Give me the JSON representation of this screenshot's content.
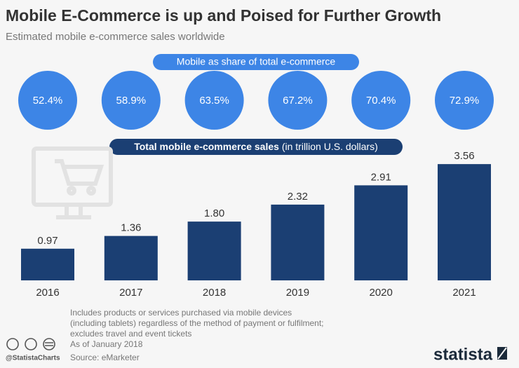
{
  "chart_data": {
    "type": "bar",
    "title": "Mobile E-Commerce is up and Poised for Further Growth",
    "subtitle": "Estimated mobile e-commerce sales worldwide",
    "share_title": "Mobile as share of total e-commerce",
    "share_values": [
      52.4,
      58.9,
      63.5,
      67.2,
      70.4,
      72.9
    ],
    "share_labels": [
      "52.4%",
      "58.9%",
      "63.5%",
      "67.2%",
      "70.4%",
      "72.9%"
    ],
    "share_color": "#3d85e6",
    "bar_title": "Total mobile e-commerce sales",
    "bar_unit": "(in trillion U.S. dollars)",
    "categories": [
      "2016",
      "2017",
      "2018",
      "2019",
      "2020",
      "2021"
    ],
    "values": [
      0.97,
      1.36,
      1.8,
      2.32,
      2.91,
      3.56
    ],
    "value_labels": [
      "0.97",
      "1.36",
      "1.80",
      "2.32",
      "2.91",
      "3.56"
    ],
    "color": "#1b3f73",
    "notes": [
      "Includes products or services purchased via mobile devices",
      "(including tablets) regardless of the method of payment or fulfilment;",
      "excludes travel and event tickets",
      "As of January 2018"
    ],
    "source": "Source: eMarketer",
    "handle": "@StatistaCharts",
    "brand": "statista"
  }
}
